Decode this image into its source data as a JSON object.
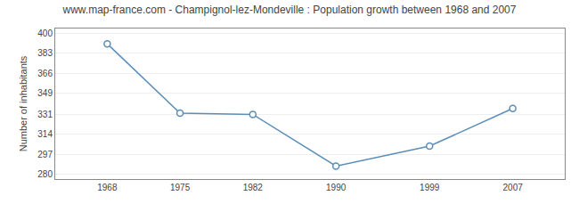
{
  "chart_data": {
    "type": "line",
    "title": "www.map-france.com - Champignol-lez-Mondeville : Population growth between 1968 and 2007",
    "y_label": "Number of inhabitants",
    "x": [
      1968,
      1975,
      1982,
      1990,
      1999,
      2007
    ],
    "values": [
      391,
      332,
      331,
      287,
      304,
      336
    ],
    "color": "#5b8db8",
    "marker": "circle",
    "xlim": [
      1963,
      2012
    ],
    "xticks": [
      1968,
      1975,
      1982,
      1990,
      1999,
      2007
    ],
    "ylim": [
      276,
      404
    ],
    "yticks": [
      280,
      297,
      314,
      331,
      349,
      366,
      383,
      400
    ],
    "grid": "y"
  }
}
